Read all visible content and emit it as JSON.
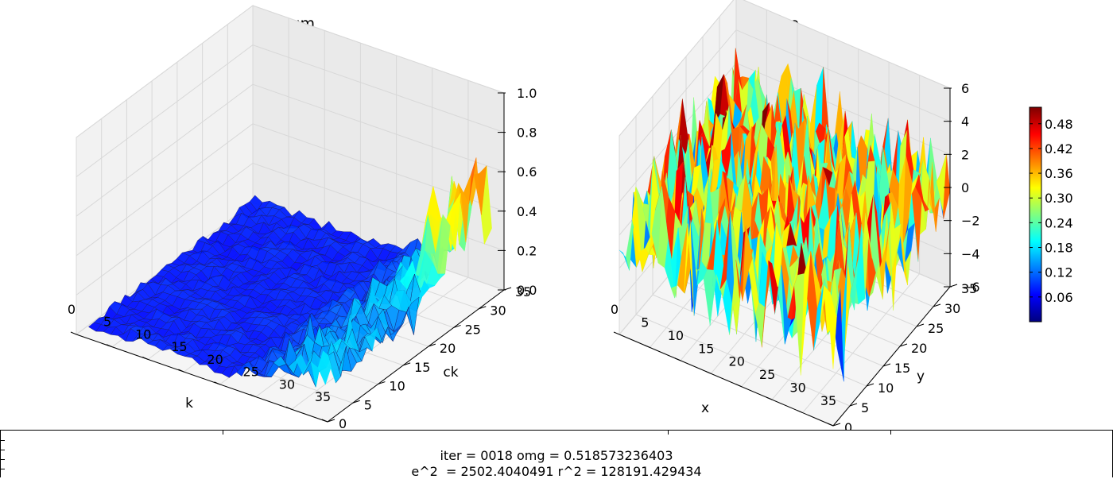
{
  "chart_data": [
    {
      "type": "surface3d",
      "title": "Spectrum",
      "xlabel": "k",
      "ylabel": "ck",
      "zlabel": "",
      "xlim": [
        0,
        35
      ],
      "ylim": [
        0,
        35
      ],
      "zlim": [
        0.0,
        1.0
      ],
      "x_ticks": [
        "0",
        "5",
        "10",
        "15",
        "20",
        "25",
        "30",
        "35"
      ],
      "y_ticks": [
        "0",
        "5",
        "10",
        "15",
        "20",
        "25",
        "30",
        "35"
      ],
      "z_ticks": [
        "0.0",
        "0.2",
        "0.4",
        "0.6",
        "0.8",
        "1.0"
      ],
      "colormap": "jet",
      "grid": true,
      "description_values": {
        "baseline_level": 0.05,
        "peak_region_k": [
          28,
          35
        ],
        "peak_max": 0.85
      }
    },
    {
      "type": "surface3d",
      "title": "Wave",
      "xlabel": "x",
      "ylabel": "y",
      "zlabel": "",
      "xlim": [
        0,
        35
      ],
      "ylim": [
        0,
        35
      ],
      "zlim": [
        -6,
        6
      ],
      "x_ticks": [
        "0",
        "5",
        "10",
        "15",
        "20",
        "25",
        "30",
        "35"
      ],
      "y_ticks": [
        "0",
        "5",
        "10",
        "15",
        "20",
        "25",
        "30",
        "35"
      ],
      "z_ticks": [
        "−6",
        "−4",
        "−2",
        "0",
        "2",
        "4",
        "6"
      ],
      "colormap": "jet",
      "grid": true,
      "description_values": {
        "noise_amplitude": 4.5
      }
    }
  ],
  "colorbar": {
    "ticks": [
      "0.06",
      "0.12",
      "0.18",
      "0.24",
      "0.30",
      "0.36",
      "0.42",
      "0.48"
    ],
    "tick_values": [
      0.06,
      0.12,
      0.18,
      0.24,
      0.3,
      0.36,
      0.42,
      0.48
    ],
    "range": [
      0.0,
      0.52
    ],
    "colormap": "jet"
  },
  "status": {
    "line1": "iter = 0018 omg = 0.518573236403",
    "line2": "e^2  = 2502.4040491 r^2 = 128191.429434"
  }
}
